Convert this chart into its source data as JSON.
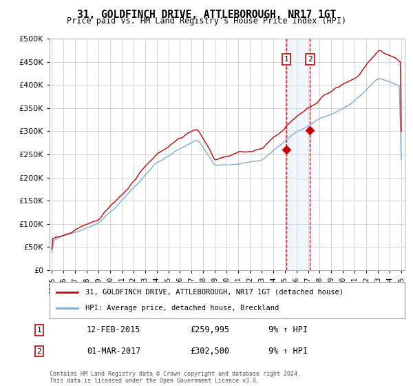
{
  "title": "31, GOLDFINCH DRIVE, ATTLEBOROUGH, NR17 1GT",
  "subtitle": "Price paid vs. HM Land Registry's House Price Index (HPI)",
  "legend_label_red": "31, GOLDFINCH DRIVE, ATTLEBOROUGH, NR17 1GT (detached house)",
  "legend_label_blue": "HPI: Average price, detached house, Breckland",
  "footnote": "Contains HM Land Registry data © Crown copyright and database right 2024.\nThis data is licensed under the Open Government Licence v3.0.",
  "annotation1_label": "1",
  "annotation1_date": "12-FEB-2015",
  "annotation1_price": "£259,995",
  "annotation1_hpi": "9% ↑ HPI",
  "annotation2_label": "2",
  "annotation2_date": "01-MAR-2017",
  "annotation2_price": "£302,500",
  "annotation2_hpi": "9% ↑ HPI",
  "ylim": [
    0,
    500000
  ],
  "xlim_start": 1994.8,
  "xlim_end": 2025.3,
  "point1_x": 2015.12,
  "point2_x": 2017.17,
  "point1_y": 259995,
  "point2_y": 302500,
  "red_color": "#cc0000",
  "blue_color": "#7aaddb",
  "shade_color": "#d6e8f7",
  "grid_color": "#cccccc",
  "background_color": "#ffffff"
}
